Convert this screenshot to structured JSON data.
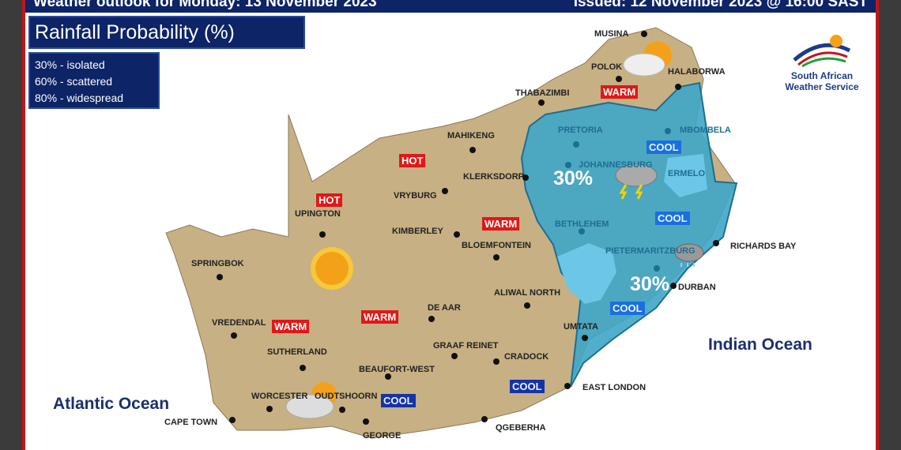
{
  "header": {
    "title": "Weather outlook for Monday: 13 November 2023",
    "issued": "Issued: 12 November 2023 @ 16:00 SAST"
  },
  "map_title": "Rainfall Probability (%)",
  "legend": [
    "30% - isolated",
    "60% - scattered",
    "80% - widespread"
  ],
  "logo": {
    "line1": "South African",
    "line2": "Weather Service"
  },
  "oceans": {
    "atlantic": "Atlantic Ocean",
    "indian": "Indian Ocean"
  },
  "rain_probability": [
    {
      "label": "30%",
      "region": "Gauteng/Mpumalanga"
    },
    {
      "label": "30%",
      "region": "KwaZulu-Natal"
    }
  ],
  "cities": [
    {
      "name": "MUSINA"
    },
    {
      "name": "POLOK"
    },
    {
      "name": "HALABORWA"
    },
    {
      "name": "THABAZIMBI"
    },
    {
      "name": "MAHIKENG"
    },
    {
      "name": "KLERKSDORP"
    },
    {
      "name": "VRYBURG"
    },
    {
      "name": "UPINGTON"
    },
    {
      "name": "KIMBERLEY"
    },
    {
      "name": "BLOEMFONTEIN"
    },
    {
      "name": "SPRINGBOK"
    },
    {
      "name": "DE AAR"
    },
    {
      "name": "ALIWAL NORTH"
    },
    {
      "name": "VREDENDAL"
    },
    {
      "name": "SUTHERLAND"
    },
    {
      "name": "GRAAF REINET"
    },
    {
      "name": "CRADOCK"
    },
    {
      "name": "BEAUFORT-WEST"
    },
    {
      "name": "UMTATA"
    },
    {
      "name": "EAST LONDON"
    },
    {
      "name": "WORCESTER"
    },
    {
      "name": "OUDTSHOORN"
    },
    {
      "name": "CAPE TOWN"
    },
    {
      "name": "GEORGE"
    },
    {
      "name": "QGEBERHA"
    },
    {
      "name": "PRETORIA"
    },
    {
      "name": "JOHANNESBURG"
    },
    {
      "name": "MBOMBELA"
    },
    {
      "name": "ERMELO"
    },
    {
      "name": "BETHLEHEM"
    },
    {
      "name": "PIETERMARITZBURG"
    },
    {
      "name": "DURBAN"
    },
    {
      "name": "RICHARDS BAY"
    }
  ],
  "temperature_badges": [
    "HOT",
    "HOT",
    "WARM",
    "WARM",
    "WARM",
    "WARM",
    "COOL",
    "COOL",
    "COOL",
    "COOL",
    "COOL"
  ],
  "colors": {
    "header": "#0d2466",
    "border": "#c0161c",
    "hot": "#e01818",
    "cool": "#1a6fe0",
    "rain_area": "#3ea6c6",
    "land": "#c4ad80"
  }
}
